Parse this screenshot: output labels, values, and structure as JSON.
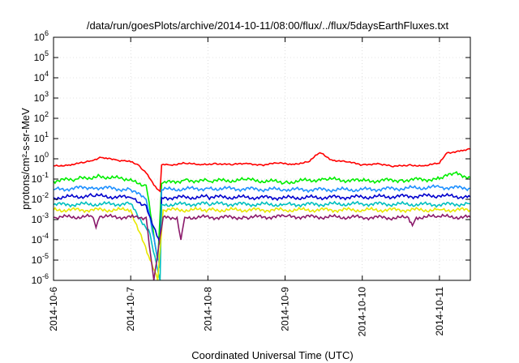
{
  "chart_data": {
    "type": "line",
    "title": "/data/run/goesPlots/archive/2014-10-11/08:00/flux/../flux/5daysEarthFluxes.txt",
    "xlabel": "Coordinated Universal Time (UTC)",
    "ylabel": "protons/cm²-s-sr-MeV",
    "yscale": "log",
    "ylim_exp": [
      -6,
      6
    ],
    "y_tick_exps": [
      -6,
      -5,
      -4,
      -3,
      -2,
      -1,
      0,
      1,
      2,
      3,
      4,
      5,
      6
    ],
    "xlim_days": [
      0,
      5.4
    ],
    "x_ticks": [
      {
        "day": 0,
        "label": "2014-10-6"
      },
      {
        "day": 1,
        "label": "2014-10-7"
      },
      {
        "day": 2,
        "label": "2014-10-8"
      },
      {
        "day": 3,
        "label": "2014-10-9"
      },
      {
        "day": 4,
        "label": "2014-10-10"
      },
      {
        "day": 5,
        "label": "2014-10-11"
      }
    ],
    "grid": true,
    "legend": "none",
    "series": [
      {
        "color": "#ff0000",
        "points": [
          [
            0,
            0.45
          ],
          [
            0.2,
            0.5
          ],
          [
            0.4,
            0.65
          ],
          [
            0.5,
            0.8
          ],
          [
            0.6,
            1.2
          ],
          [
            0.7,
            1.0
          ],
          [
            0.8,
            0.9
          ],
          [
            0.9,
            0.8
          ],
          [
            1.0,
            0.7
          ],
          [
            1.1,
            0.5
          ],
          [
            1.2,
            0.2
          ],
          [
            1.3,
            0.05
          ],
          [
            1.38,
            0.025
          ],
          [
            1.4,
            0.5
          ],
          [
            1.5,
            0.5
          ],
          [
            1.7,
            0.6
          ],
          [
            1.9,
            0.5
          ],
          [
            2.1,
            0.6
          ],
          [
            2.3,
            0.5
          ],
          [
            2.5,
            0.6
          ],
          [
            2.7,
            0.5
          ],
          [
            2.9,
            0.6
          ],
          [
            3.1,
            0.55
          ],
          [
            3.3,
            0.7
          ],
          [
            3.45,
            2.0
          ],
          [
            3.6,
            0.9
          ],
          [
            3.8,
            0.7
          ],
          [
            4.0,
            0.5
          ],
          [
            4.2,
            0.6
          ],
          [
            4.4,
            0.4
          ],
          [
            4.6,
            0.5
          ],
          [
            4.8,
            0.45
          ],
          [
            5.0,
            0.6
          ],
          [
            5.1,
            2.0
          ],
          [
            5.3,
            2.5
          ],
          [
            5.4,
            3.0
          ]
        ]
      },
      {
        "color": "#00ee00",
        "points": [
          [
            0,
            0.08
          ],
          [
            0.3,
            0.1
          ],
          [
            0.6,
            0.14
          ],
          [
            0.9,
            0.1
          ],
          [
            1.2,
            0.05
          ],
          [
            1.35,
            1e-05
          ],
          [
            1.4,
            0.06
          ],
          [
            1.7,
            0.09
          ],
          [
            2.0,
            0.08
          ],
          [
            2.5,
            0.09
          ],
          [
            3.0,
            0.07
          ],
          [
            3.5,
            0.1
          ],
          [
            4.0,
            0.08
          ],
          [
            4.5,
            0.09
          ],
          [
            5.0,
            0.1
          ],
          [
            5.2,
            0.2
          ],
          [
            5.4,
            0.12
          ]
        ]
      },
      {
        "color": "#1e90ff",
        "points": [
          [
            0,
            0.03
          ],
          [
            0.5,
            0.04
          ],
          [
            1.0,
            0.03
          ],
          [
            1.2,
            0.01
          ],
          [
            1.38,
            4e-06
          ],
          [
            1.4,
            0.03
          ],
          [
            2.0,
            0.035
          ],
          [
            3.0,
            0.03
          ],
          [
            4.0,
            0.03
          ],
          [
            5.0,
            0.04
          ],
          [
            5.4,
            0.035
          ]
        ]
      },
      {
        "color": "#0000cd",
        "points": [
          [
            0,
            0.012
          ],
          [
            0.5,
            0.015
          ],
          [
            1.0,
            0.012
          ],
          [
            1.2,
            0.005
          ],
          [
            1.38,
            6e-05
          ],
          [
            1.4,
            0.012
          ],
          [
            2.0,
            0.013
          ],
          [
            3.0,
            0.012
          ],
          [
            4.0,
            0.013
          ],
          [
            5.0,
            0.015
          ],
          [
            5.4,
            0.013
          ]
        ]
      },
      {
        "color": "#00c0c0",
        "points": [
          [
            0,
            0.0055
          ],
          [
            1.0,
            0.006
          ],
          [
            1.25,
            0.0002
          ],
          [
            1.38,
            1e-06
          ],
          [
            1.4,
            0.0055
          ],
          [
            2.0,
            0.006
          ],
          [
            3.0,
            0.0055
          ],
          [
            4.0,
            0.006
          ],
          [
            5.0,
            0.0055
          ],
          [
            5.4,
            0.006
          ]
        ]
      },
      {
        "color": "#e8e800",
        "points": [
          [
            0,
            0.003
          ],
          [
            1.0,
            0.003
          ],
          [
            1.25,
            1e-05
          ],
          [
            1.35,
            1e-06
          ],
          [
            1.42,
            0.003
          ],
          [
            2.0,
            0.003
          ],
          [
            3.0,
            0.003
          ],
          [
            4.0,
            0.003
          ],
          [
            5.0,
            0.003
          ],
          [
            5.4,
            0.003
          ]
        ]
      },
      {
        "color": "#8b1a6b",
        "points": [
          [
            0,
            0.0013
          ],
          [
            0.5,
            0.0014
          ],
          [
            0.55,
            0.0004
          ],
          [
            0.6,
            0.0014
          ],
          [
            1.0,
            0.0013
          ],
          [
            1.2,
            0.0013
          ],
          [
            1.3,
            1e-06
          ],
          [
            1.42,
            0.0013
          ],
          [
            1.6,
            0.0013
          ],
          [
            1.65,
            0.0001
          ],
          [
            1.7,
            0.0013
          ],
          [
            2.5,
            0.0013
          ],
          [
            3.0,
            0.0014
          ],
          [
            4.0,
            0.0013
          ],
          [
            4.6,
            0.0012
          ],
          [
            4.65,
            0.0005
          ],
          [
            4.7,
            0.0013
          ],
          [
            5.0,
            0.0014
          ],
          [
            5.4,
            0.0013
          ]
        ]
      }
    ]
  }
}
